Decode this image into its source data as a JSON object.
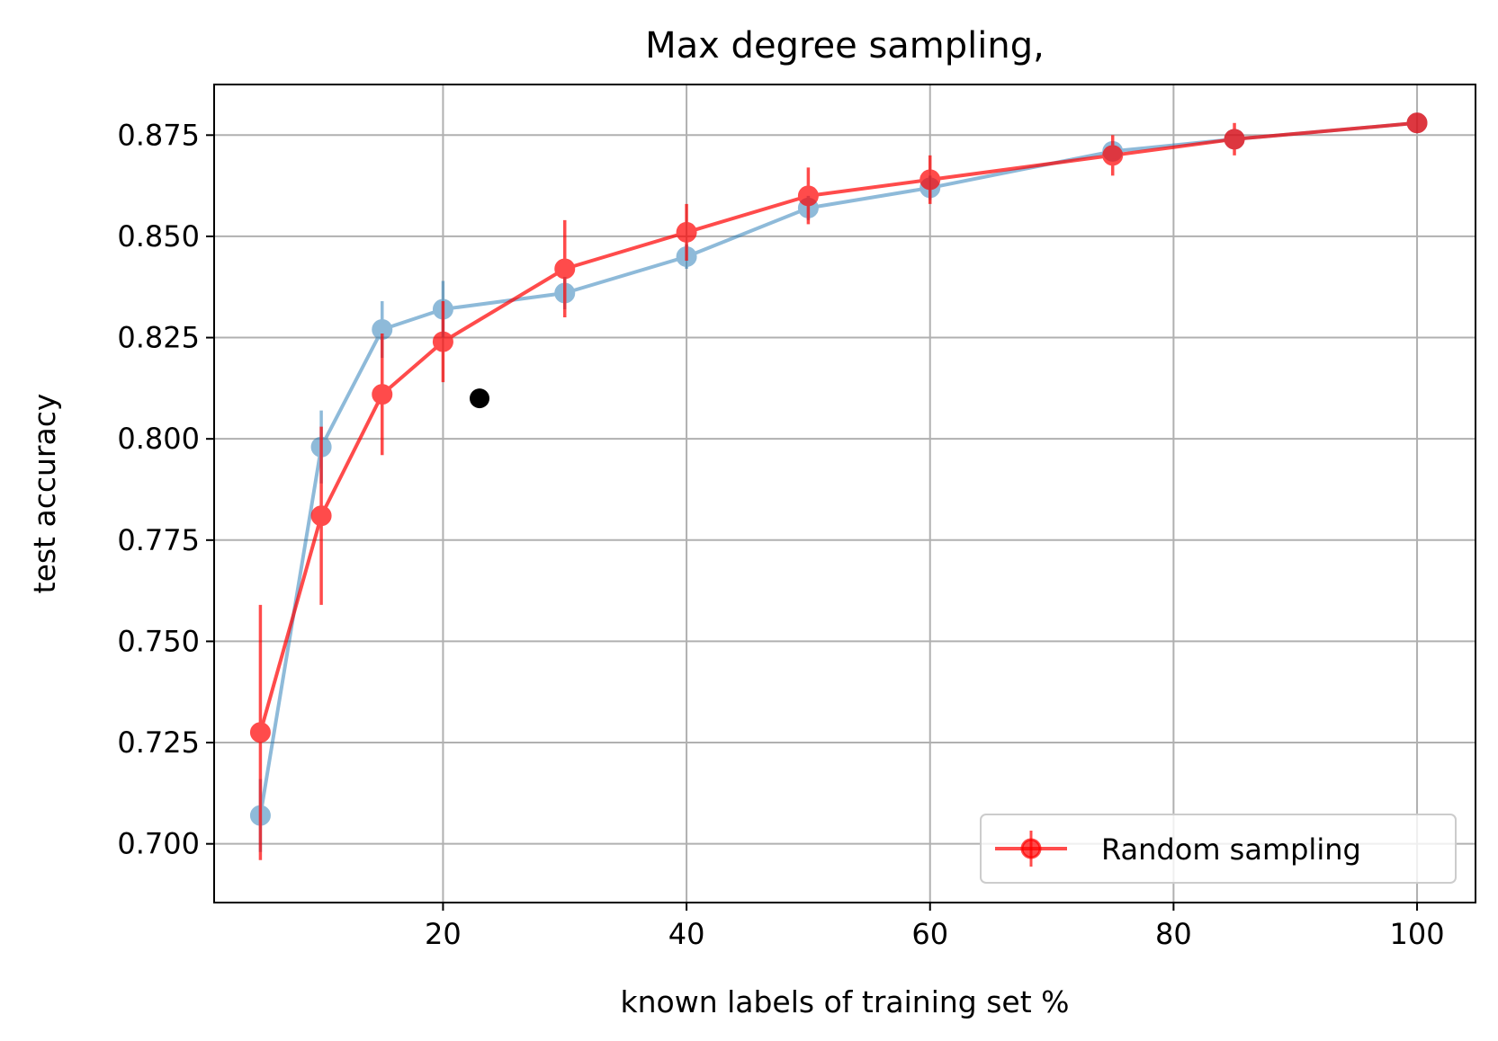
{
  "chart_data": {
    "type": "line",
    "title": "Max degree sampling,",
    "xlabel": "known labels of training set %",
    "ylabel": "test accuracy",
    "xlim": [
      1.2,
      104.8
    ],
    "ylim": [
      0.6855,
      0.8875
    ],
    "xticks": [
      20,
      40,
      60,
      80,
      100
    ],
    "yticks": [
      0.7,
      0.725,
      0.75,
      0.775,
      0.8,
      0.825,
      0.85,
      0.875
    ],
    "grid": true,
    "legend_position": "lower-right",
    "series": [
      {
        "name": "",
        "color": "#1f77b4",
        "opacity": 0.5,
        "x": [
          5,
          10,
          15,
          20,
          30,
          40,
          50,
          60,
          75,
          85,
          100
        ],
        "y": [
          0.707,
          0.798,
          0.827,
          0.832,
          0.836,
          0.845,
          0.857,
          0.862,
          0.871,
          0.874,
          0.878
        ],
        "err": [
          0.009,
          0.009,
          0.007,
          0.007,
          0.004,
          0.003,
          0.003,
          0.003,
          0.002,
          0.002,
          0.001
        ]
      },
      {
        "name": "Random sampling",
        "color": "#ff0000",
        "opacity": 0.7,
        "x": [
          5,
          10,
          15,
          20,
          30,
          40,
          50,
          60,
          75,
          85,
          100
        ],
        "y": [
          0.7275,
          0.781,
          0.811,
          0.824,
          0.842,
          0.851,
          0.86,
          0.864,
          0.87,
          0.874,
          0.878
        ],
        "err": [
          0.0315,
          0.022,
          0.015,
          0.01,
          0.012,
          0.007,
          0.007,
          0.006,
          0.005,
          0.004,
          0.001
        ]
      }
    ],
    "points": [
      {
        "x": 23,
        "y": 0.81,
        "color": "#000000"
      }
    ]
  }
}
